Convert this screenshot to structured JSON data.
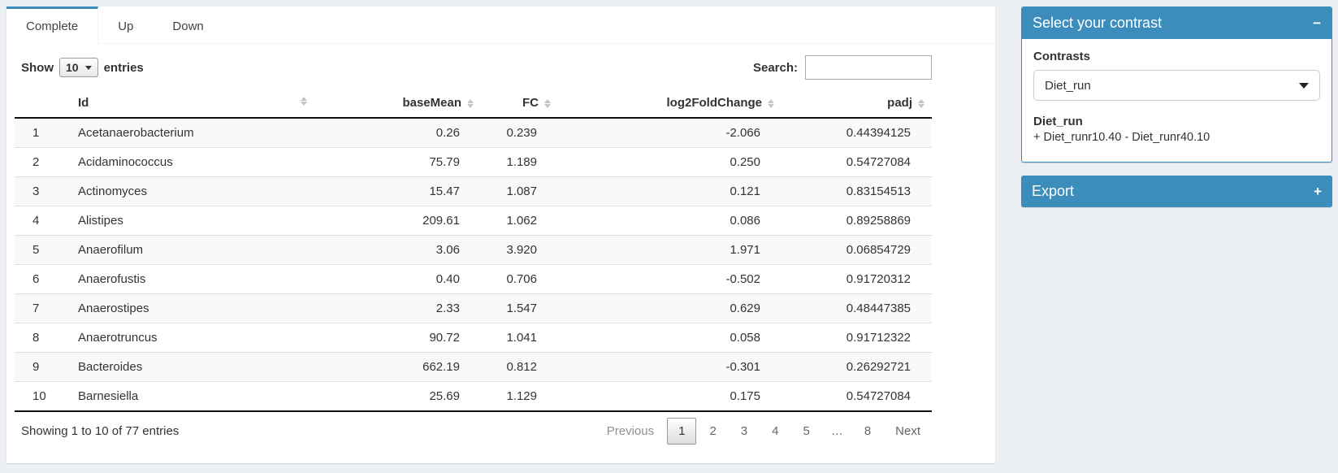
{
  "tabs": [
    {
      "label": "Complete",
      "active": true
    },
    {
      "label": "Up",
      "active": false
    },
    {
      "label": "Down",
      "active": false
    }
  ],
  "length_control": {
    "prefix": "Show",
    "value": "10",
    "suffix": "entries"
  },
  "search": {
    "label": "Search:",
    "value": "",
    "placeholder": ""
  },
  "table": {
    "columns": [
      {
        "label": "",
        "sortable": false,
        "align": "left"
      },
      {
        "label": "Id",
        "sortable": true,
        "align": "left"
      },
      {
        "label": "baseMean",
        "sortable": true,
        "align": "right"
      },
      {
        "label": "FC",
        "sortable": true,
        "align": "right"
      },
      {
        "label": "log2FoldChange",
        "sortable": true,
        "align": "right"
      },
      {
        "label": "padj",
        "sortable": true,
        "align": "right"
      }
    ],
    "rows": [
      [
        "1",
        "Acetanaerobacterium",
        "0.26",
        "0.239",
        "-2.066",
        "0.44394125"
      ],
      [
        "2",
        "Acidaminococcus",
        "75.79",
        "1.189",
        "0.250",
        "0.54727084"
      ],
      [
        "3",
        "Actinomyces",
        "15.47",
        "1.087",
        "0.121",
        "0.83154513"
      ],
      [
        "4",
        "Alistipes",
        "209.61",
        "1.062",
        "0.086",
        "0.89258869"
      ],
      [
        "5",
        "Anaerofilum",
        "3.06",
        "3.920",
        "1.971",
        "0.06854729"
      ],
      [
        "6",
        "Anaerofustis",
        "0.40",
        "0.706",
        "-0.502",
        "0.91720312"
      ],
      [
        "7",
        "Anaerostipes",
        "2.33",
        "1.547",
        "0.629",
        "0.48447385"
      ],
      [
        "8",
        "Anaerotruncus",
        "90.72",
        "1.041",
        "0.058",
        "0.91712322"
      ],
      [
        "9",
        "Bacteroides",
        "662.19",
        "0.812",
        "-0.301",
        "0.26292721"
      ],
      [
        "10",
        "Barnesiella",
        "25.69",
        "1.129",
        "0.175",
        "0.54727084"
      ]
    ],
    "info": "Showing 1 to 10 of 77 entries",
    "pagination": {
      "previous": "Previous",
      "pages": [
        "1",
        "2",
        "3",
        "4",
        "5",
        "…",
        "8"
      ],
      "current": "1",
      "ellipsis": "…",
      "next": "Next"
    }
  },
  "contrast_box": {
    "title": "Select your contrast",
    "collapse_icon": "−",
    "contrasts_label": "Contrasts",
    "selected_contrast": "Diet_run",
    "detail_title": "Diet_run",
    "detail_formula": "+ Diet_runr10.40 - Diet_runr40.10"
  },
  "export_box": {
    "title": "Export",
    "expand_icon": "+"
  },
  "colors": {
    "accent": "#3c8dbc",
    "page_background": "#ecf0f5"
  }
}
